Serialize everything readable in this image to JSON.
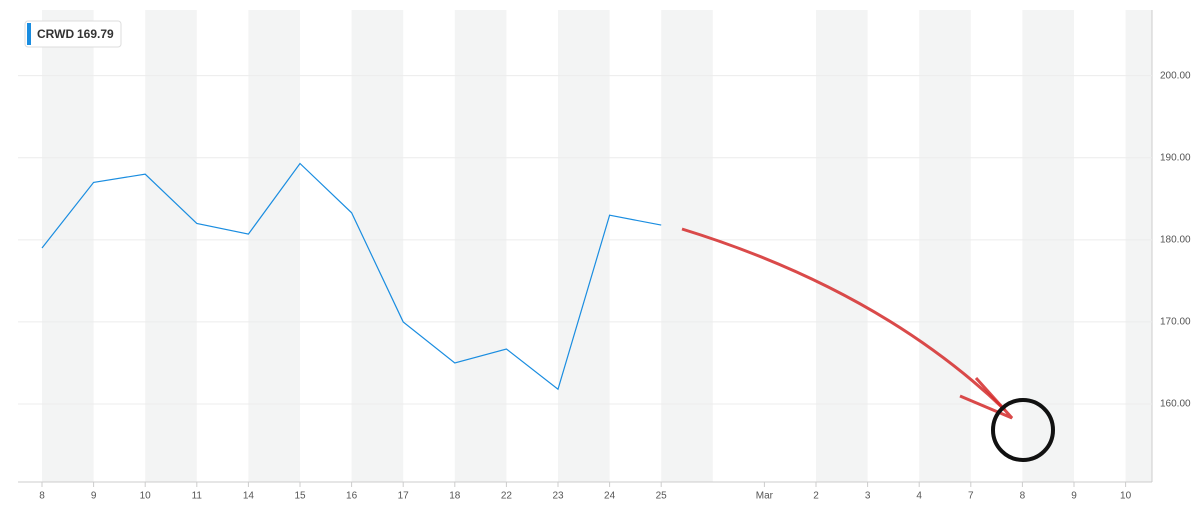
{
  "chart_data": {
    "type": "line",
    "categories": [
      "8",
      "9",
      "10",
      "11",
      "14",
      "15",
      "16",
      "17",
      "18",
      "22",
      "23",
      "24",
      "25",
      null,
      "Mar",
      "2",
      "3",
      "4",
      "7",
      "8",
      "9",
      "10"
    ],
    "series": [
      {
        "name": "CRWD",
        "color": "#1a8de0",
        "values": [
          179,
          187,
          188,
          182,
          180.7,
          189.3,
          183.3,
          170,
          165,
          166.7,
          161.8,
          183,
          181.8,
          null,
          null,
          null,
          null,
          null,
          null,
          null,
          null,
          null
        ]
      }
    ],
    "legend_value": 169.79,
    "ylim": [
      150.5,
      208
    ],
    "yticks": [
      {
        "value": 160,
        "label": "160.00"
      },
      {
        "value": 170,
        "label": "170.00"
      },
      {
        "value": 180,
        "label": "180.00"
      },
      {
        "value": 190,
        "label": "190.00"
      },
      {
        "value": 200,
        "label": "200.00"
      }
    ],
    "grid": true
  }
}
